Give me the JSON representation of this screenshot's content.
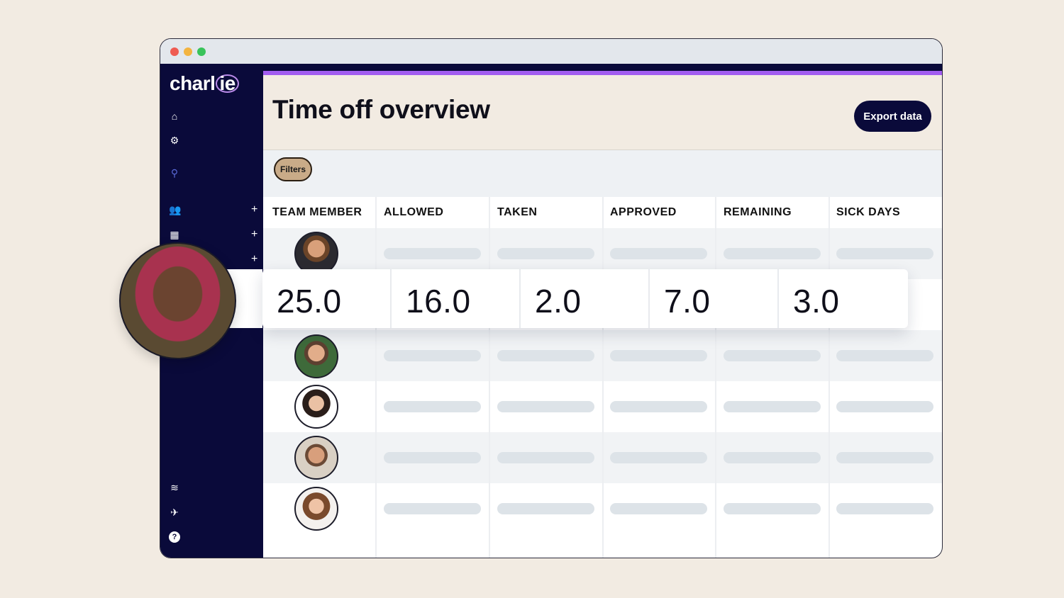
{
  "app": {
    "logo_text": "charl",
    "logo_ring_text": "ie",
    "window_dots": [
      "#ef5b52",
      "#f3b440",
      "#39c35a"
    ],
    "accent_color": "#a25cf0",
    "sidebar_color": "#0a0a3a"
  },
  "sidebar": {
    "icons": [
      {
        "name": "home-icon",
        "glyph": "⌂"
      },
      {
        "name": "gear-icon",
        "glyph": "⚙"
      },
      {
        "name": "search-icon",
        "glyph": "⚲"
      },
      {
        "name": "people-icon",
        "glyph": "👥"
      },
      {
        "name": "building-icon",
        "glyph": "▦"
      }
    ],
    "bottom_icons": [
      {
        "name": "money-icon",
        "glyph": "≋"
      },
      {
        "name": "rocket-icon",
        "glyph": "✈"
      },
      {
        "name": "help-icon",
        "glyph": "?"
      }
    ],
    "plus_glyph": "+"
  },
  "header": {
    "title": "Time off overview",
    "export_label": "Export data"
  },
  "filters": {
    "label": "Filters"
  },
  "table": {
    "columns": [
      "TEAM MEMBER",
      "ALLOWED",
      "TAKEN",
      "APPROVED",
      "REMAINING",
      "SICK DAYS"
    ]
  },
  "highlight": {
    "values": [
      "25.0",
      "16.0",
      "2.0",
      "7.0",
      "3.0"
    ]
  }
}
